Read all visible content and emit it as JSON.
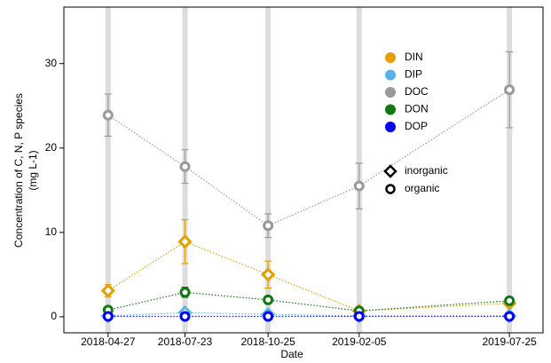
{
  "chart_data": {
    "type": "line",
    "ylabel": [
      "Concentration of C, N, P species",
      "(mg L-1)"
    ],
    "xlabel": "Date",
    "x": [
      "2018-04-27",
      "2018-07-23",
      "2018-10-25",
      "2019-02-05",
      "2019-07-25"
    ],
    "xlim": [
      "2018-03-08",
      "2019-09-01"
    ],
    "ylim": [
      -1.9,
      36.7
    ],
    "yticks": [
      0,
      10,
      20,
      30
    ],
    "series": [
      {
        "name": "DIN",
        "color": "#e69f00",
        "marker": "diamond",
        "values": [
          3.1,
          8.9,
          5.0,
          0.7,
          1.6
        ],
        "errors": [
          0.7,
          2.6,
          1.6,
          0.2,
          0.3
        ]
      },
      {
        "name": "DIP",
        "color": "#56b4e9",
        "marker": "diamond",
        "values": [
          0.1,
          0.5,
          0.3,
          0.1,
          0.1
        ],
        "errors": [
          0.1,
          0.2,
          0.1,
          0.05,
          0.05
        ]
      },
      {
        "name": "DOC",
        "color": "#999999",
        "marker": "circle",
        "values": [
          23.9,
          17.8,
          10.8,
          15.5,
          26.9
        ],
        "errors": [
          2.5,
          2.0,
          1.4,
          2.7,
          4.5
        ]
      },
      {
        "name": "DON",
        "color": "#117711",
        "marker": "circle",
        "values": [
          0.8,
          2.9,
          2.0,
          0.7,
          1.9
        ],
        "errors": [
          0.3,
          0.6,
          0.3,
          0.2,
          0.2
        ]
      },
      {
        "name": "DOP",
        "color": "#0000ff",
        "marker": "circle",
        "values": [
          0.05,
          0.05,
          0.05,
          0.05,
          0.05
        ],
        "errors": [
          0.02,
          0.02,
          0.02,
          0.02,
          0.02
        ]
      }
    ],
    "shape_legend": [
      {
        "name": "inorganic",
        "marker": "diamond"
      },
      {
        "name": "organic",
        "marker": "circle"
      }
    ]
  }
}
